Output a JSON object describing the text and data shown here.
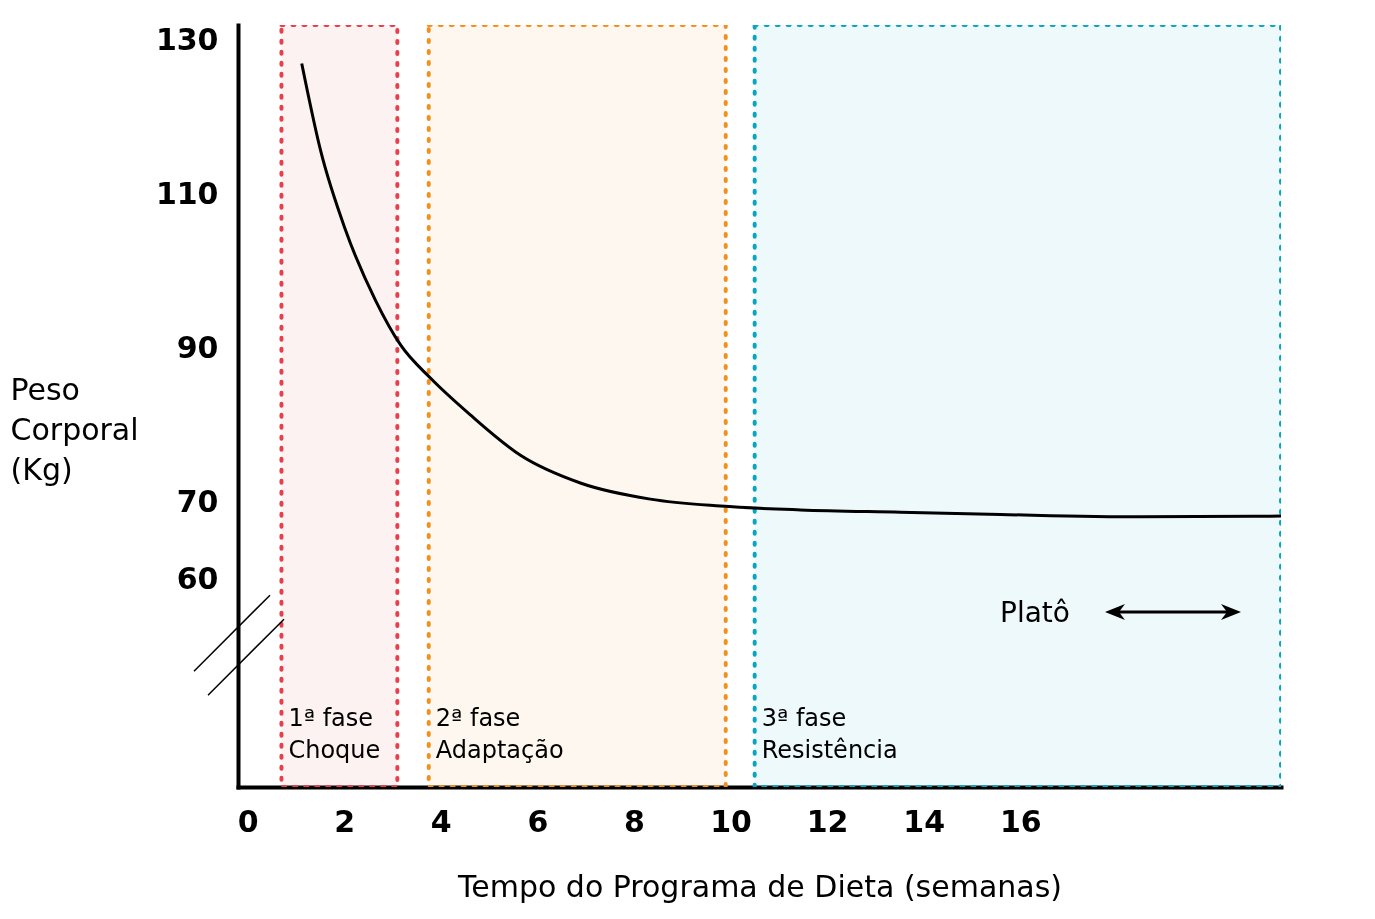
{
  "chart_data": {
    "type": "line",
    "xlabel": "Tempo do Programa de Dieta (semanas)",
    "ylabel": "Peso\nCorporal\n(Kg)",
    "series": [
      {
        "color": "#000000",
        "x": [
          1.12,
          1.51,
          2.03,
          2.65,
          3.17,
          3.79,
          4.62,
          5.65,
          6.89,
          8.34,
          9.79,
          11.45,
          13.52,
          15.59,
          18.49,
          21.4
        ],
        "values": [
          127.0,
          115.7,
          105.3,
          96.2,
          90.4,
          86.1,
          81.3,
          76.1,
          72.5,
          70.4,
          69.5,
          69.0,
          68.7,
          68.4,
          68.1,
          68.2
        ]
      }
    ],
    "xlim": [
      -0.2,
      21.4
    ],
    "ylim": [
      33,
      132
    ],
    "xticks": [
      0,
      2,
      4,
      6,
      8,
      10,
      12,
      14,
      16
    ],
    "yticks": [
      60,
      70,
      90,
      110,
      130
    ],
    "grid": false,
    "marker": "none",
    "line_style": "solid",
    "bands": [
      {
        "axis": "x",
        "from": 0.7,
        "to": 3.1,
        "label": "1ª fase\nChoque",
        "color": "#e8404a"
      },
      {
        "axis": "x",
        "from": 3.75,
        "to": 9.9,
        "label": "2ª fase\nAdaptação",
        "color": "#f0901e"
      },
      {
        "axis": "x",
        "from": 10.5,
        "to": 21.4,
        "label": "3ª fase\nResistência",
        "color": "#0aa6c0"
      }
    ],
    "annotations": [
      "Platô"
    ]
  }
}
